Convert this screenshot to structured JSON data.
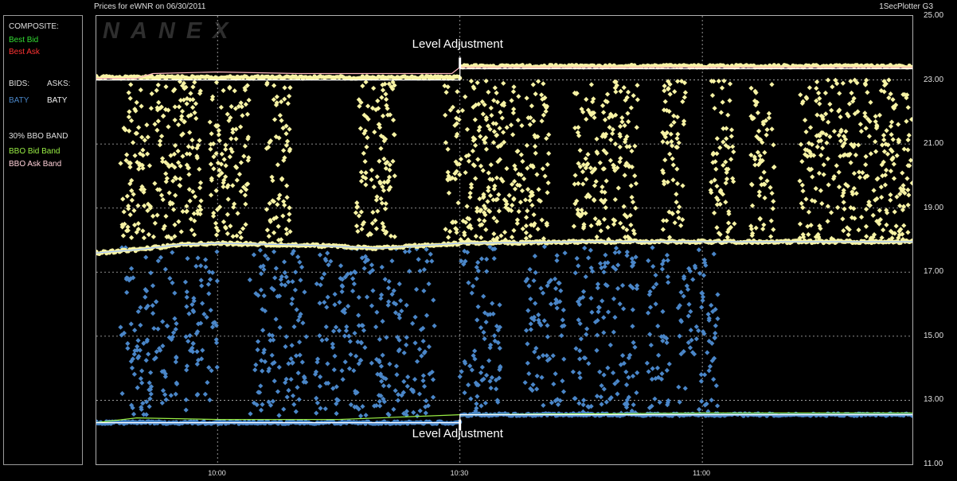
{
  "window": {
    "title": "Prices for  eWNR  on  06/30/2011",
    "app": "1SecPlotter G3"
  },
  "legend": {
    "composite_header": "COMPOSITE:",
    "best_bid": "Best Bid",
    "best_ask": "Best Ask",
    "bids_header": "BIDS:",
    "asks_header": "ASKS:",
    "bid_exchange": "BATY",
    "ask_exchange": "BATY",
    "band_header": "30% BBO BAND",
    "bbo_bid_band": "BBO Bid Band",
    "bbo_ask_band": "BBO Ask Band"
  },
  "watermark": "NANEX",
  "colors": {
    "background": "#000000",
    "grid": "#b8b8b8",
    "best_bid": "#33dd33",
    "best_ask": "#ff3333",
    "bid_points": "#4a86c8",
    "ask_points": "#f7f3a4",
    "bbo_bid_band": "#99ee44",
    "bbo_ask_band": "#ffb8c0",
    "level_line": "#ffffff"
  },
  "chart_data": {
    "type": "scatter",
    "ylim": [
      11.0,
      25.0
    ],
    "yticks": [
      "25.00",
      "23.00",
      "21.00",
      "19.00",
      "17.00",
      "15.00",
      "13.00",
      "11.00"
    ],
    "x_time_range": [
      "09:45",
      "11:26"
    ],
    "xticks": [
      "10:00",
      "10:30",
      "11:00"
    ],
    "grid": "dashed",
    "annotations": [
      {
        "text": "Level Adjustment",
        "time": "10:30",
        "position": "top"
      },
      {
        "text": "Level Adjustment",
        "time": "10:30",
        "position": "bottom"
      }
    ],
    "series": [
      {
        "name": "BBO Ask Band",
        "type": "line",
        "points": [
          [
            "09:45",
            23.05
          ],
          [
            "09:50",
            23.05
          ],
          [
            "09:52",
            23.2
          ],
          [
            "10:00",
            23.25
          ],
          [
            "10:10",
            23.2
          ],
          [
            "10:20",
            23.2
          ],
          [
            "10:29",
            23.2
          ],
          [
            "10:30",
            23.4
          ],
          [
            "11:00",
            23.4
          ],
          [
            "11:26",
            23.4
          ]
        ]
      },
      {
        "name": "Ask Level",
        "type": "line",
        "points": [
          [
            "09:45",
            23.0
          ],
          [
            "10:30",
            23.0
          ],
          [
            "10:30",
            23.35
          ],
          [
            "11:26",
            23.35
          ]
        ]
      },
      {
        "name": "Best Ask",
        "type": "line",
        "points": [
          [
            "09:45",
            17.6
          ],
          [
            "09:50",
            17.7
          ],
          [
            "09:55",
            17.85
          ],
          [
            "10:00",
            17.9
          ],
          [
            "10:10",
            17.85
          ],
          [
            "10:20",
            17.75
          ],
          [
            "10:30",
            17.9
          ],
          [
            "10:45",
            17.95
          ],
          [
            "11:00",
            17.95
          ],
          [
            "11:26",
            17.95
          ]
        ]
      },
      {
        "name": "BBO Bid Band",
        "type": "line",
        "points": [
          [
            "09:45",
            12.3
          ],
          [
            "09:50",
            12.45
          ],
          [
            "10:00",
            12.4
          ],
          [
            "10:15",
            12.4
          ],
          [
            "10:30",
            12.55
          ],
          [
            "11:00",
            12.6
          ],
          [
            "11:26",
            12.6
          ]
        ]
      },
      {
        "name": "Bid Level",
        "type": "line",
        "points": [
          [
            "09:45",
            12.3
          ],
          [
            "10:30",
            12.3
          ],
          [
            "10:30",
            12.55
          ],
          [
            "11:26",
            12.55
          ]
        ]
      }
    ],
    "scatter_regions": {
      "ask_quotes": {
        "price_range": [
          18.0,
          23.0
        ],
        "time_clusters": [
          [
            "09:48",
            "09:58"
          ],
          [
            "09:59",
            "10:04"
          ],
          [
            "10:06",
            "10:09"
          ],
          [
            "10:17",
            "10:22"
          ],
          [
            "10:28",
            "10:38"
          ],
          [
            "10:38",
            "10:41"
          ],
          [
            "10:44",
            "10:48"
          ],
          [
            "10:48",
            "10:52"
          ],
          [
            "10:55",
            "10:58"
          ],
          [
            "11:01",
            "11:04"
          ],
          [
            "11:06",
            "11:09"
          ],
          [
            "11:12",
            "11:26"
          ]
        ]
      },
      "bid_quotes": {
        "price_range": [
          12.5,
          17.8
        ],
        "time_clusters": [
          [
            "09:48",
            "09:55"
          ],
          [
            "09:56",
            "10:00"
          ],
          [
            "10:04",
            "10:11"
          ],
          [
            "10:12",
            "10:20"
          ],
          [
            "10:20",
            "10:25"
          ],
          [
            "10:25",
            "10:27"
          ],
          [
            "10:30",
            "10:35"
          ],
          [
            "10:38",
            "10:43"
          ],
          [
            "10:44",
            "10:48"
          ],
          [
            "10:48",
            "10:52"
          ],
          [
            "10:53",
            "10:56"
          ],
          [
            "10:57",
            "11:02"
          ]
        ]
      }
    }
  }
}
